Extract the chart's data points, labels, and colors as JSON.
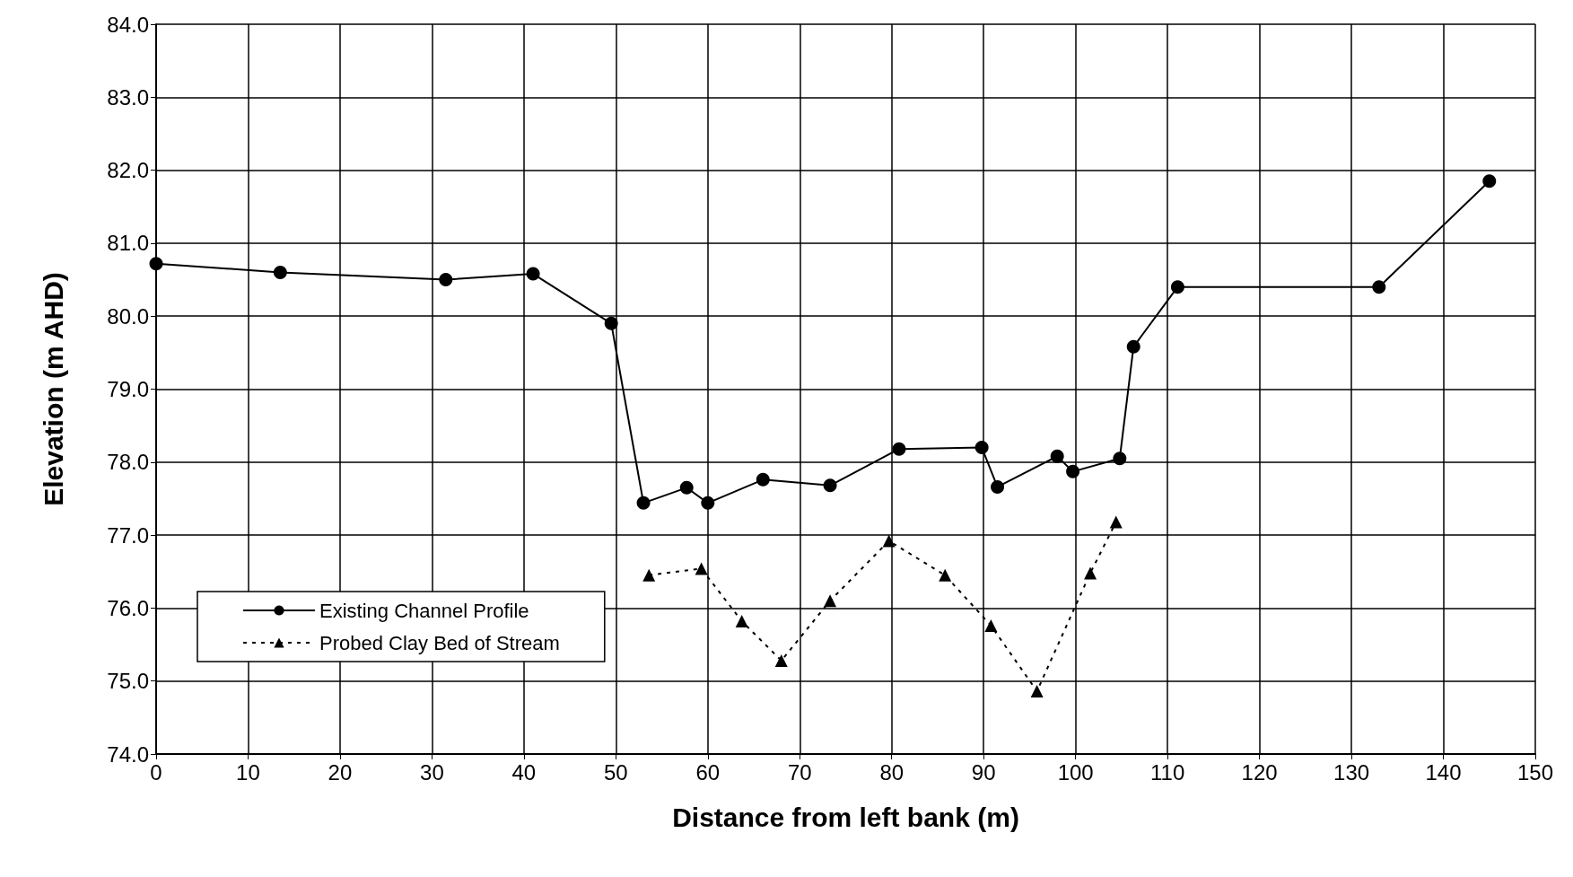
{
  "chart_data": {
    "type": "line",
    "xlabel": "Distance from left bank (m)",
    "ylabel": "Elevation (m AHD)",
    "xlim": [
      0,
      150
    ],
    "xticks": [
      0,
      10,
      20,
      30,
      40,
      50,
      60,
      70,
      80,
      90,
      100,
      110,
      120,
      130,
      140,
      150
    ],
    "ylim": [
      74,
      84
    ],
    "yticks": [
      {
        "value": 74,
        "label": "74.0"
      },
      {
        "value": 75,
        "label": "75.0"
      },
      {
        "value": 76,
        "label": "76.0"
      },
      {
        "value": 77,
        "label": "77.0"
      },
      {
        "value": 78,
        "label": "78.0"
      },
      {
        "value": 79,
        "label": "79.0"
      },
      {
        "value": 80,
        "label": "80.0"
      },
      {
        "value": 81,
        "label": "81.0"
      },
      {
        "value": 82,
        "label": "82.0"
      },
      {
        "value": 83,
        "label": "83.0"
      },
      {
        "value": 84,
        "label": "84.0"
      }
    ],
    "grid": true,
    "legend": "bottom left",
    "series": [
      {
        "name": "Existing Channel Profile",
        "color": "#000000",
        "marker": "circle",
        "line_style": "solid",
        "x": [
          0,
          13.5,
          31.5,
          41,
          49.5,
          53,
          57.7,
          60,
          66,
          73.3,
          80.8,
          89.8,
          91.5,
          98,
          99.7,
          104.8,
          106.3,
          111.1,
          133,
          145
        ],
        "values": [
          80.72,
          80.6,
          80.5,
          80.58,
          79.9,
          77.44,
          77.65,
          77.44,
          77.76,
          77.68,
          78.18,
          78.2,
          77.66,
          78.08,
          77.87,
          78.05,
          79.58,
          80.4,
          80.4,
          81.85
        ]
      },
      {
        "name": "Probed Clay Bed of Stream",
        "color": "#000000",
        "marker": "triangle",
        "line_style": "dotted",
        "x": [
          53.6,
          59.3,
          63.7,
          68,
          73.3,
          79.7,
          85.8,
          90.8,
          95.8,
          101.6,
          104.4
        ],
        "values": [
          76.45,
          76.54,
          75.82,
          75.28,
          76.1,
          76.92,
          76.45,
          75.76,
          74.86,
          76.48,
          77.18
        ]
      }
    ]
  }
}
